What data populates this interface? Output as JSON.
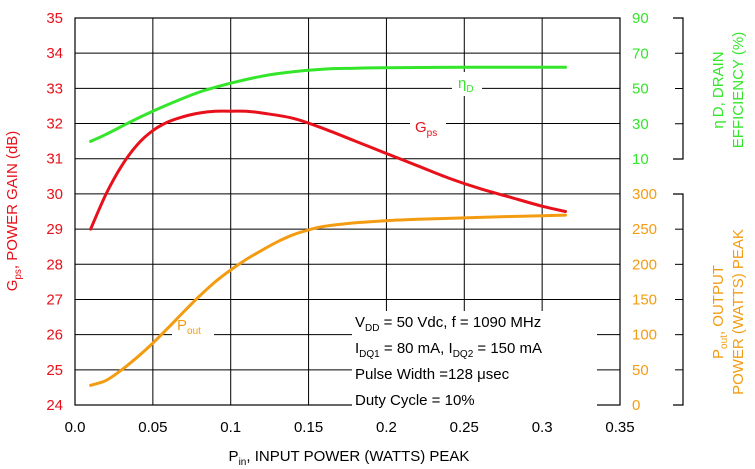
{
  "chart_data": {
    "type": "line",
    "colors": {
      "gps": "#e8101a",
      "eta": "#33e62a",
      "pout": "#f39c12",
      "grid": "#000000"
    },
    "x_axis": {
      "label": {
        "main": "P",
        "sub": "in",
        "rest": ", INPUT POWER (WATTS) PEAK"
      },
      "range": [
        0,
        0.35
      ],
      "ticks": [
        "0.0",
        "0.05",
        "0.1",
        "0.15",
        "0.2",
        "0.25",
        "0.3",
        "0.35"
      ]
    },
    "left_axis": {
      "label": {
        "main": "G",
        "sub": "ps",
        "rest": ", POWER GAIN (dB)"
      },
      "range": [
        24,
        35
      ],
      "ticks": [
        "24",
        "25",
        "26",
        "27",
        "28",
        "29",
        "30",
        "31",
        "32",
        "33",
        "34",
        "35"
      ]
    },
    "right_top_axis": {
      "label_line1": "η D, DRAIN",
      "label_line2": "EFFICIENCY (%)",
      "range": [
        10,
        90
      ],
      "ticks": [
        "10",
        "30",
        "50",
        "70",
        "90"
      ]
    },
    "right_bottom_axis": {
      "label_line1": {
        "main": "P",
        "sub": "out",
        "rest": ", OUTPUT"
      },
      "label_line2": "POWER (WATTS) PEAK",
      "range": [
        0,
        300
      ],
      "ticks": [
        "0",
        "50",
        "100",
        "150",
        "200",
        "250",
        "300"
      ]
    },
    "series": [
      {
        "name": "Gps",
        "label": {
          "main": "G",
          "sub": "ps"
        },
        "axis": "left",
        "x": [
          0.01,
          0.02,
          0.03,
          0.04,
          0.05,
          0.06,
          0.07,
          0.08,
          0.09,
          0.1,
          0.11,
          0.12,
          0.14,
          0.16,
          0.18,
          0.2,
          0.22,
          0.24,
          0.26,
          0.28,
          0.3,
          0.315
        ],
        "y": [
          29.0,
          30.0,
          30.8,
          31.4,
          31.8,
          32.05,
          32.2,
          32.3,
          32.35,
          32.35,
          32.35,
          32.3,
          32.15,
          31.85,
          31.5,
          31.15,
          30.8,
          30.45,
          30.15,
          29.9,
          29.65,
          29.5
        ]
      },
      {
        "name": "ηD",
        "label": {
          "main": "η",
          "sub": "D"
        },
        "axis": "right_top",
        "x": [
          0.01,
          0.02,
          0.04,
          0.06,
          0.08,
          0.1,
          0.12,
          0.14,
          0.16,
          0.18,
          0.2,
          0.25,
          0.3,
          0.315
        ],
        "y": [
          20,
          24,
          33,
          41,
          48,
          53,
          57,
          59.5,
          61,
          61.5,
          61.8,
          62,
          62,
          62
        ]
      },
      {
        "name": "Pout",
        "label": {
          "main": "P",
          "sub": "out"
        },
        "axis": "right_bottom",
        "x": [
          0.01,
          0.02,
          0.03,
          0.04,
          0.05,
          0.06,
          0.07,
          0.08,
          0.09,
          0.1,
          0.11,
          0.12,
          0.13,
          0.14,
          0.15,
          0.16,
          0.18,
          0.2,
          0.22,
          0.25,
          0.28,
          0.3,
          0.315
        ],
        "y": [
          28,
          35,
          50,
          68,
          88,
          110,
          133,
          155,
          175,
          192,
          207,
          220,
          232,
          242,
          249,
          254,
          259,
          262,
          264,
          266,
          268,
          269,
          270
        ]
      }
    ],
    "annotation": [
      {
        "main": "V",
        "sub": "DD",
        "rest": " = 50 Vdc, f = 1090 MHz"
      },
      {
        "main": "I",
        "sub": "DQ1",
        "rest": " = 80 mA, I",
        "sub2": "DQ2",
        "rest2": " = 150 mA"
      },
      {
        "main": "Pulse Width =128 μsec"
      },
      {
        "main": "Duty Cycle = 10%"
      }
    ]
  }
}
